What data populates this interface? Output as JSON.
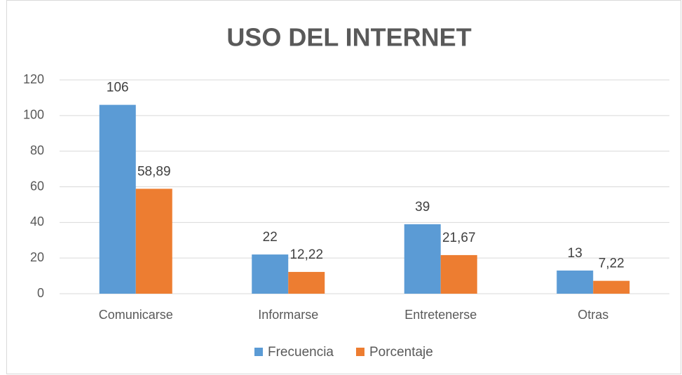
{
  "chart_data": {
    "type": "bar",
    "title": "USO DEL INTERNET",
    "categories": [
      "Comunicarse",
      "Informarse",
      "Entretenerse",
      "Otras"
    ],
    "series": [
      {
        "name": "Frecuencia",
        "color": "#5b9bd5",
        "values": [
          106,
          22,
          39,
          13
        ]
      },
      {
        "name": "Porcentaje",
        "color": "#ed7d31",
        "values": [
          58.89,
          12.22,
          21.67,
          7.22
        ],
        "value_labels": [
          "58,89",
          "12,22",
          "21,67",
          "7,22"
        ]
      }
    ],
    "ylim": [
      0,
      120
    ],
    "yticks": [
      0,
      20,
      40,
      60,
      80,
      100,
      120
    ],
    "grid": true,
    "legend": "bottom"
  }
}
